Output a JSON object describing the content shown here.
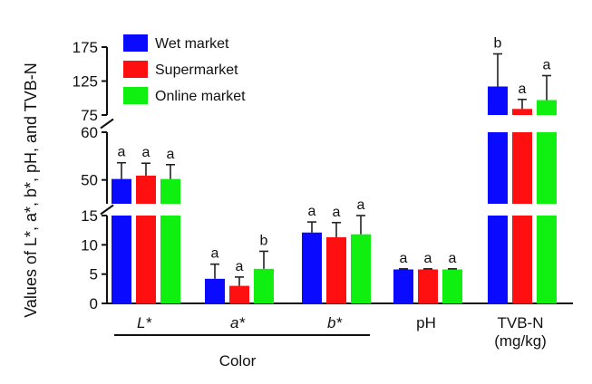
{
  "chart_data": {
    "type": "bar",
    "ylabel": "Values of L*, a*, b*, pH, and TVB-N",
    "group_label": "Color",
    "categories": [
      "L*",
      "a*",
      "b*",
      "pH",
      "TVB-N\n(mg/kg)"
    ],
    "axis_breaks": [
      {
        "range": [
          0,
          15
        ],
        "ticks": [
          0,
          5,
          10,
          15
        ]
      },
      {
        "range": [
          45,
          60
        ],
        "ticks": [
          50,
          60
        ]
      },
      {
        "range": [
          75,
          175
        ],
        "ticks": [
          75,
          125,
          175
        ]
      }
    ],
    "series": [
      {
        "name": "Wet market",
        "color": "#0a0aff",
        "values": [
          50.2,
          4.2,
          12.1,
          5.8,
          117
        ],
        "errors": [
          3.4,
          2.5,
          1.8,
          0.1,
          48
        ],
        "letters": [
          "a",
          "a",
          "a",
          "a",
          "b"
        ]
      },
      {
        "name": "Supermarket",
        "color": "#ff1010",
        "values": [
          50.9,
          3.0,
          11.3,
          5.8,
          84
        ],
        "errors": [
          2.6,
          1.5,
          2.5,
          0.1,
          14
        ],
        "letters": [
          "a",
          "a",
          "a",
          "a",
          "a"
        ]
      },
      {
        "name": "Online market",
        "color": "#10f010",
        "values": [
          50.2,
          5.9,
          11.8,
          5.8,
          97
        ],
        "errors": [
          3.0,
          3.0,
          3.5,
          0.1,
          36
        ],
        "letters": [
          "a",
          "b",
          "a",
          "a",
          "a"
        ]
      }
    ],
    "legend_position": "top-left"
  }
}
